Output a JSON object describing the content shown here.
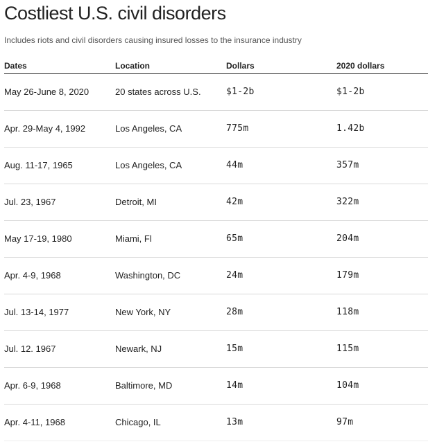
{
  "title": "Costliest U.S. civil disorders",
  "subtitle": "Includes riots and civil disorders causing insured losses to the insurance industry",
  "chart_data": {
    "type": "table",
    "columns": [
      "Dates",
      "Location",
      "Dollars",
      "2020 dollars"
    ],
    "rows": [
      {
        "dates": "May 26-June 8, 2020",
        "location": "20 states across U.S.",
        "dollars": "$1-2b",
        "dollars_2020": "$1-2b"
      },
      {
        "dates": "Apr. 29-May 4, 1992",
        "location": "Los Angeles, CA",
        "dollars": "775m",
        "dollars_2020": "1.42b"
      },
      {
        "dates": "Aug. 11-17, 1965",
        "location": "Los Angeles, CA",
        "dollars": "44m",
        "dollars_2020": "357m"
      },
      {
        "dates": "Jul. 23, 1967",
        "location": "Detroit, MI",
        "dollars": "42m",
        "dollars_2020": "322m"
      },
      {
        "dates": "May 17-19, 1980",
        "location": "Miami, Fl",
        "dollars": "65m",
        "dollars_2020": "204m"
      },
      {
        "dates": "Apr. 4-9, 1968",
        "location": "Washington, DC",
        "dollars": "24m",
        "dollars_2020": "179m"
      },
      {
        "dates": "Jul. 13-14, 1977",
        "location": "New York, NY",
        "dollars": "28m",
        "dollars_2020": "118m"
      },
      {
        "dates": "Jul. 12. 1967",
        "location": "Newark, NJ",
        "dollars": "15m",
        "dollars_2020": "115m"
      },
      {
        "dates": "Apr. 6-9, 1968",
        "location": "Baltimore, MD",
        "dollars": "14m",
        "dollars_2020": "104m"
      },
      {
        "dates": "Apr. 4-11, 1968",
        "location": "Chicago, IL",
        "dollars": "13m",
        "dollars_2020": "97m"
      }
    ]
  }
}
